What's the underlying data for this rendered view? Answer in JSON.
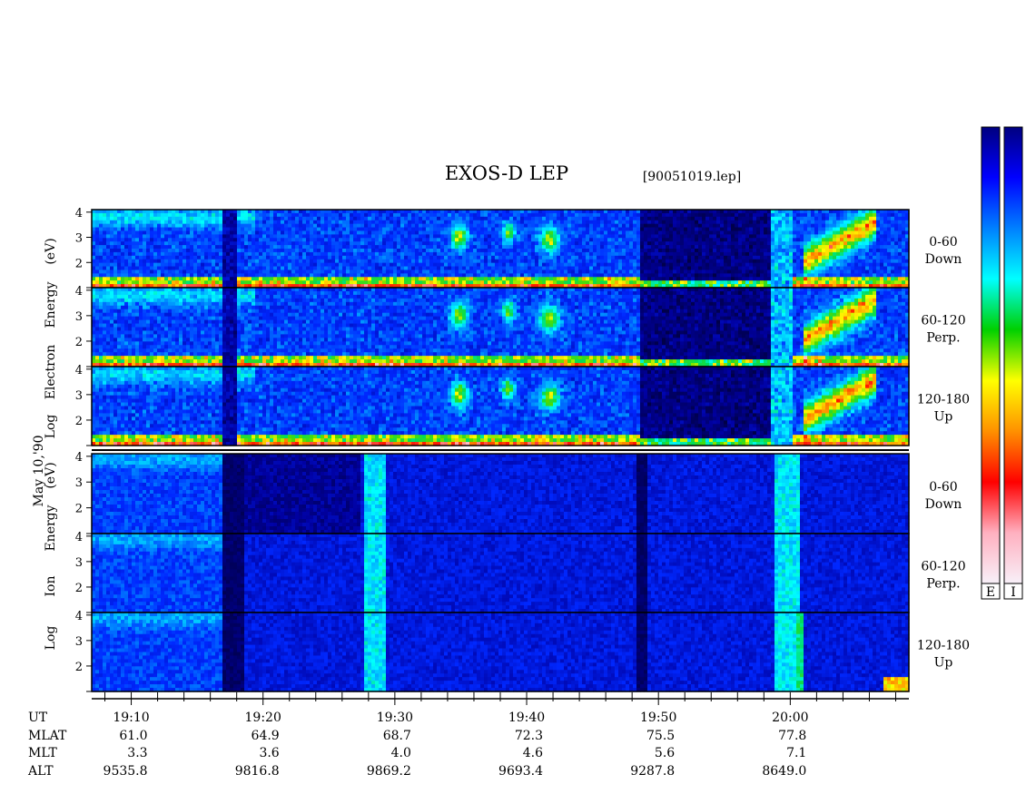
{
  "chart_data": {
    "type": "heatmap",
    "title": "EXOS-D LEP",
    "subtitle": "[90051019.lep]",
    "date_label": "May 10,'90",
    "panel_groups": [
      {
        "species": "Electron",
        "ylabel_parts": [
          "Log",
          "Electron",
          "Energy",
          "(eV)"
        ]
      },
      {
        "species": "Ion",
        "ylabel_parts": [
          "Log",
          "Ion",
          "Energy",
          "(eV)"
        ]
      }
    ],
    "panels": [
      {
        "group": "Electron",
        "pitch": "0-60",
        "dir": "Down"
      },
      {
        "group": "Electron",
        "pitch": "60-120",
        "dir": "Perp."
      },
      {
        "group": "Electron",
        "pitch": "120-180",
        "dir": "Up"
      },
      {
        "group": "Ion",
        "pitch": "0-60",
        "dir": "Down"
      },
      {
        "group": "Ion",
        "pitch": "60-120",
        "dir": "Perp."
      },
      {
        "group": "Ion",
        "pitch": "120-180",
        "dir": "Up"
      }
    ],
    "yticks": [
      "2",
      "3",
      "4"
    ],
    "ylim": [
      1,
      4.1
    ],
    "x_time_range": [
      "19:07",
      "20:09"
    ],
    "colorbars": [
      "E",
      "I"
    ],
    "colorbar_scale": [
      "#f8f0f8",
      "#ffb0c0",
      "#ff0000",
      "#ff9000",
      "#ffff00",
      "#00d000",
      "#00ffff",
      "#0080ff",
      "#0000ff",
      "#000080"
    ],
    "footer": {
      "row_labels": [
        "UT",
        "MLAT",
        "MLT",
        "ALT"
      ],
      "columns": [
        {
          "UT": "19:10",
          "MLAT": "61.0",
          "MLT": "3.3",
          "ALT": "9535.8"
        },
        {
          "UT": "19:20",
          "MLAT": "64.9",
          "MLT": "3.6",
          "ALT": "9816.8"
        },
        {
          "UT": "19:30",
          "MLAT": "68.7",
          "MLT": "4.0",
          "ALT": "9869.2"
        },
        {
          "UT": "19:40",
          "MLAT": "72.3",
          "MLT": "4.6",
          "ALT": "9693.4"
        },
        {
          "UT": "19:50",
          "MLAT": "75.5",
          "MLT": "5.6",
          "ALT": "9287.8"
        },
        {
          "UT": "20:00",
          "MLAT": "77.8",
          "MLT": "7.1",
          "ALT": "8649.0"
        }
      ]
    }
  }
}
